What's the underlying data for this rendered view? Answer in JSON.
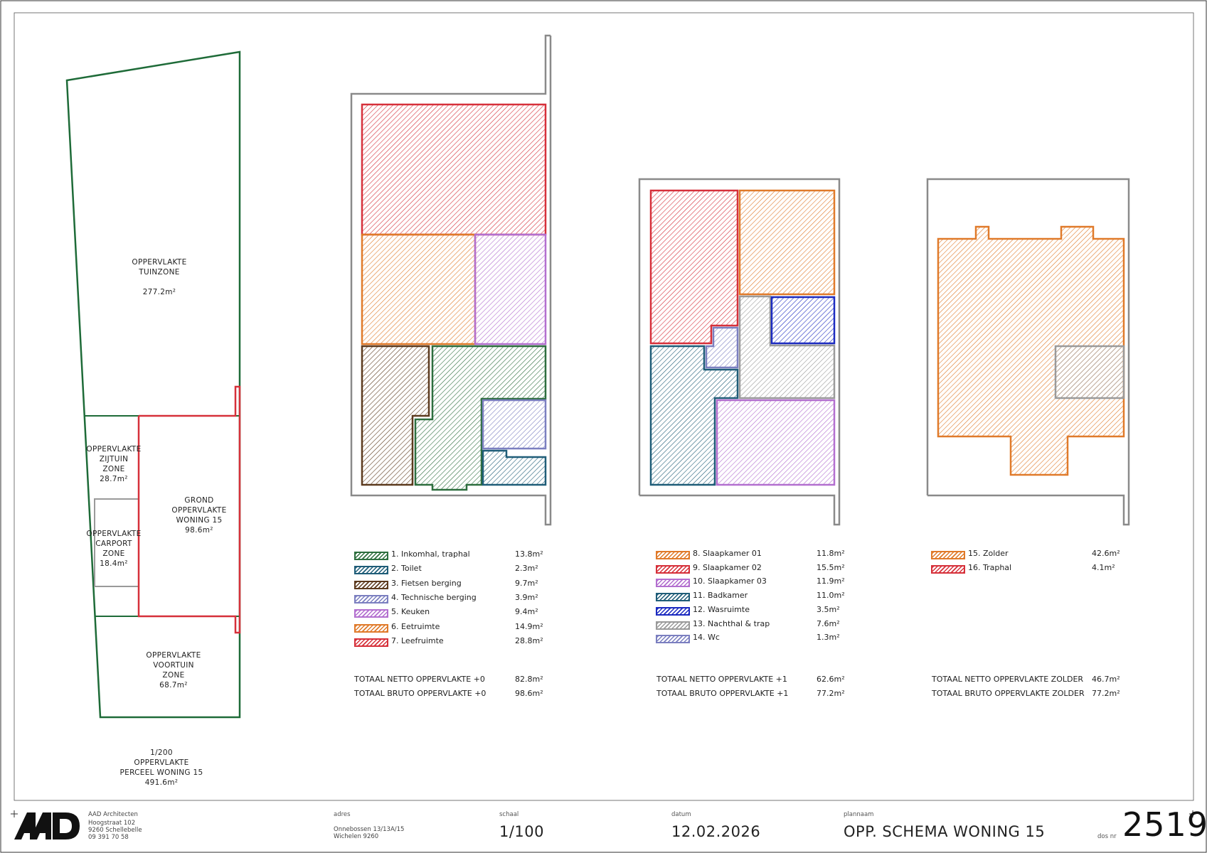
{
  "colors": {
    "green": "#2d6e3e",
    "teal": "#1f5d78",
    "brown": "#5c3a1e",
    "lavender": "#7b7fc0",
    "purple": "#b36fcf",
    "orange": "#e07a2a",
    "red": "#d6303a",
    "blue": "#1c2bc0",
    "grey": "#9a9a9a",
    "site_green": "#1e6b38"
  },
  "site": {
    "tuin": {
      "l1": "OPPERVLAKTE",
      "l2": "TUINZONE",
      "area": "277.2m²"
    },
    "zijtuin": {
      "l1": "OPPERVLAKTE",
      "l2": "ZIJTUIN",
      "l3": "ZONE",
      "area": "28.7m²"
    },
    "carport": {
      "l1": "OPPERVLAKTE",
      "l2": "CARPORT",
      "l3": "ZONE",
      "area": "18.4m²"
    },
    "grond": {
      "l1": "GROND",
      "l2": "OPPERVLAKTE",
      "l3": "WONING 15",
      "area": "98.6m²"
    },
    "voortuin": {
      "l1": "OPPERVLAKTE",
      "l2": "VOORTUIN",
      "l3": "ZONE",
      "area": "68.7m²"
    },
    "caption": {
      "scale": "1/200",
      "l1": "OPPERVLAKTE",
      "l2": "PERCEEL WONING 15",
      "area": "491.6m²"
    }
  },
  "floor0": {
    "legend": [
      {
        "name": "1. Inkomhal, traphal",
        "value": "13.8m²",
        "color": "#2d6e3e"
      },
      {
        "name": "2. Toilet",
        "value": "2.3m²",
        "color": "#1f5d78"
      },
      {
        "name": "3. Fietsen berging",
        "value": "9.7m²",
        "color": "#5c3a1e"
      },
      {
        "name": "4. Technische berging",
        "value": "3.9m²",
        "color": "#7b7fc0"
      },
      {
        "name": "5. Keuken",
        "value": "9.4m²",
        "color": "#b36fcf"
      },
      {
        "name": "6. Eetruimte",
        "value": "14.9m²",
        "color": "#e07a2a"
      },
      {
        "name": "7. Leefruimte",
        "value": "28.8m²",
        "color": "#d6303a"
      }
    ],
    "netto_label": "TOTAAL NETTO OPPERVLAKTE +0",
    "netto": "82.8m²",
    "bruto_label": "TOTAAL BRUTO OPPERVLAKTE +0",
    "bruto": "98.6m²"
  },
  "floor1": {
    "legend": [
      {
        "name": "8. Slaapkamer 01",
        "value": "11.8m²",
        "color": "#e07a2a"
      },
      {
        "name": "9. Slaapkamer 02",
        "value": "15.5m²",
        "color": "#d6303a"
      },
      {
        "name": "10. Slaapkamer 03",
        "value": "11.9m²",
        "color": "#b36fcf"
      },
      {
        "name": "11. Badkamer",
        "value": "11.0m²",
        "color": "#1f5d78"
      },
      {
        "name": "12. Wasruimte",
        "value": "3.5m²",
        "color": "#1c2bc0"
      },
      {
        "name": "13. Nachthal & trap",
        "value": "7.6m²",
        "color": "#9a9a9a"
      },
      {
        "name": "14. Wc",
        "value": "1.3m²",
        "color": "#7b7fc0"
      }
    ],
    "netto_label": "TOTAAL NETTO OPPERVLAKTE +1",
    "netto": "62.6m²",
    "bruto_label": "TOTAAL BRUTO OPPERVLAKTE +1",
    "bruto": "77.2m²"
  },
  "floor2": {
    "legend": [
      {
        "name": "15. Zolder",
        "value": "42.6m²",
        "color": "#e07a2a"
      },
      {
        "name": "16. Traphal",
        "value": "4.1m²",
        "color": "#d6303a"
      }
    ],
    "netto_label": "TOTAAL NETTO OPPERVLAKTE ZOLDER",
    "netto": "46.7m²",
    "bruto_label": "TOTAAL BRUTO OPPERVLAKTE ZOLDER",
    "bruto": "77.2m²"
  },
  "titleblock": {
    "logo": "AAD",
    "firm": "AAD Architecten",
    "street": "Hoogstraat 102",
    "city": "9260 Schellebelle",
    "phone": "09 391 70 58",
    "adres_label": "adres",
    "adres_l1": "Onnebossen 13/13A/15",
    "adres_l2": "Wichelen 9260",
    "schaal_label": "schaal",
    "schaal": "1/100",
    "datum_label": "datum",
    "datum": "12.02.2026",
    "plannaam_label": "plannaam",
    "plannaam": "OPP. SCHEMA WONING 15",
    "dos_label": "dos nr",
    "dos": "2519"
  }
}
